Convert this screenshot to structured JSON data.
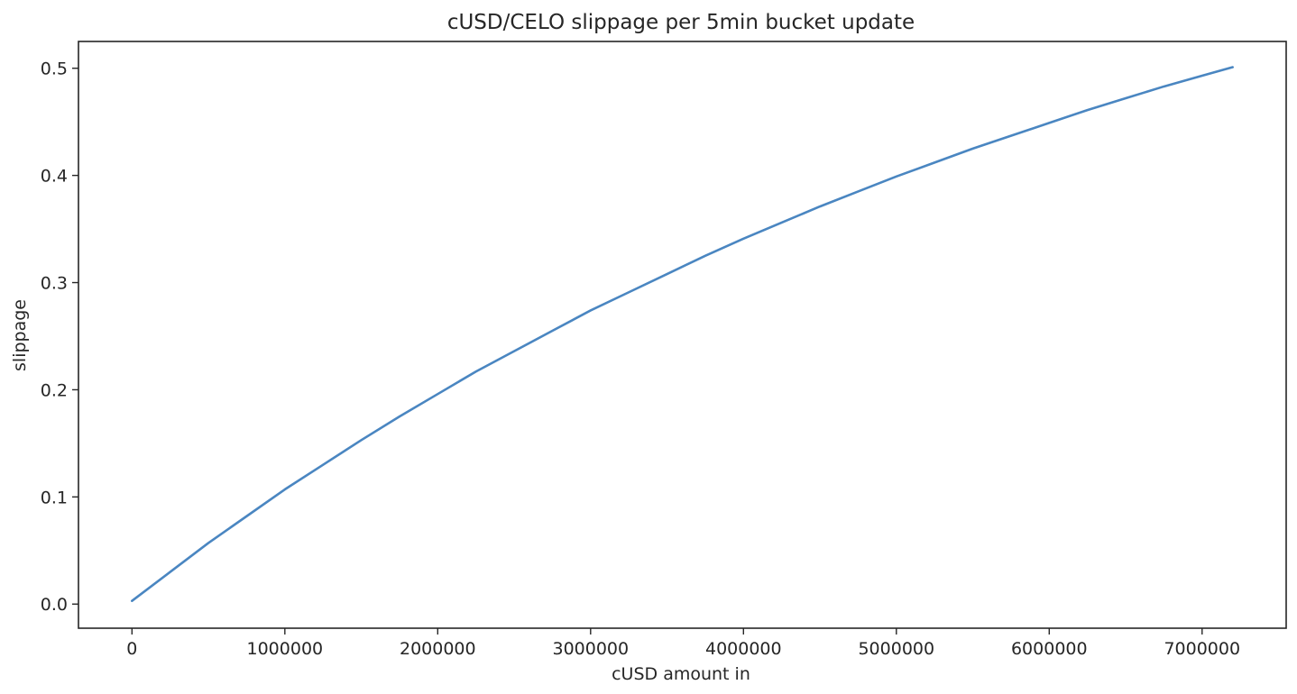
{
  "chart_data": {
    "type": "line",
    "title": "cUSD/CELO slippage per 5min bucket update",
    "xlabel": "cUSD amount in",
    "ylabel": "slippage",
    "xlim": [
      -350000,
      7550000
    ],
    "ylim": [
      -0.0225,
      0.525
    ],
    "grid": false,
    "x_ticks": [
      0,
      1000000,
      2000000,
      3000000,
      4000000,
      5000000,
      6000000,
      7000000
    ],
    "x_tick_labels": [
      "0",
      "1000000",
      "2000000",
      "3000000",
      "4000000",
      "5000000",
      "6000000",
      "7000000"
    ],
    "y_ticks": [
      0.0,
      0.1,
      0.2,
      0.3,
      0.4,
      0.5
    ],
    "y_tick_labels": [
      "0.0",
      "0.1",
      "0.2",
      "0.3",
      "0.4",
      "0.5"
    ],
    "colors": {
      "line": "#4a86c1",
      "axes": "#262626"
    },
    "series": [
      {
        "x": [
          0,
          250000,
          500000,
          750000,
          1000000,
          1250000,
          1500000,
          1750000,
          2000000,
          2250000,
          2500000,
          2750000,
          3000000,
          3250000,
          3500000,
          3750000,
          4000000,
          4250000,
          4500000,
          4750000,
          5000000,
          5250000,
          5500000,
          5750000,
          6000000,
          6250000,
          6500000,
          6750000,
          7000000,
          7200000
        ],
        "values": [
          0.003,
          0.03,
          0.057,
          0.082,
          0.107,
          0.13,
          0.153,
          0.175,
          0.196,
          0.217,
          0.236,
          0.255,
          0.274,
          0.291,
          0.308,
          0.325,
          0.341,
          0.356,
          0.371,
          0.385,
          0.399,
          0.412,
          0.425,
          0.437,
          0.449,
          0.461,
          0.472,
          0.483,
          0.493,
          0.501
        ]
      }
    ]
  }
}
